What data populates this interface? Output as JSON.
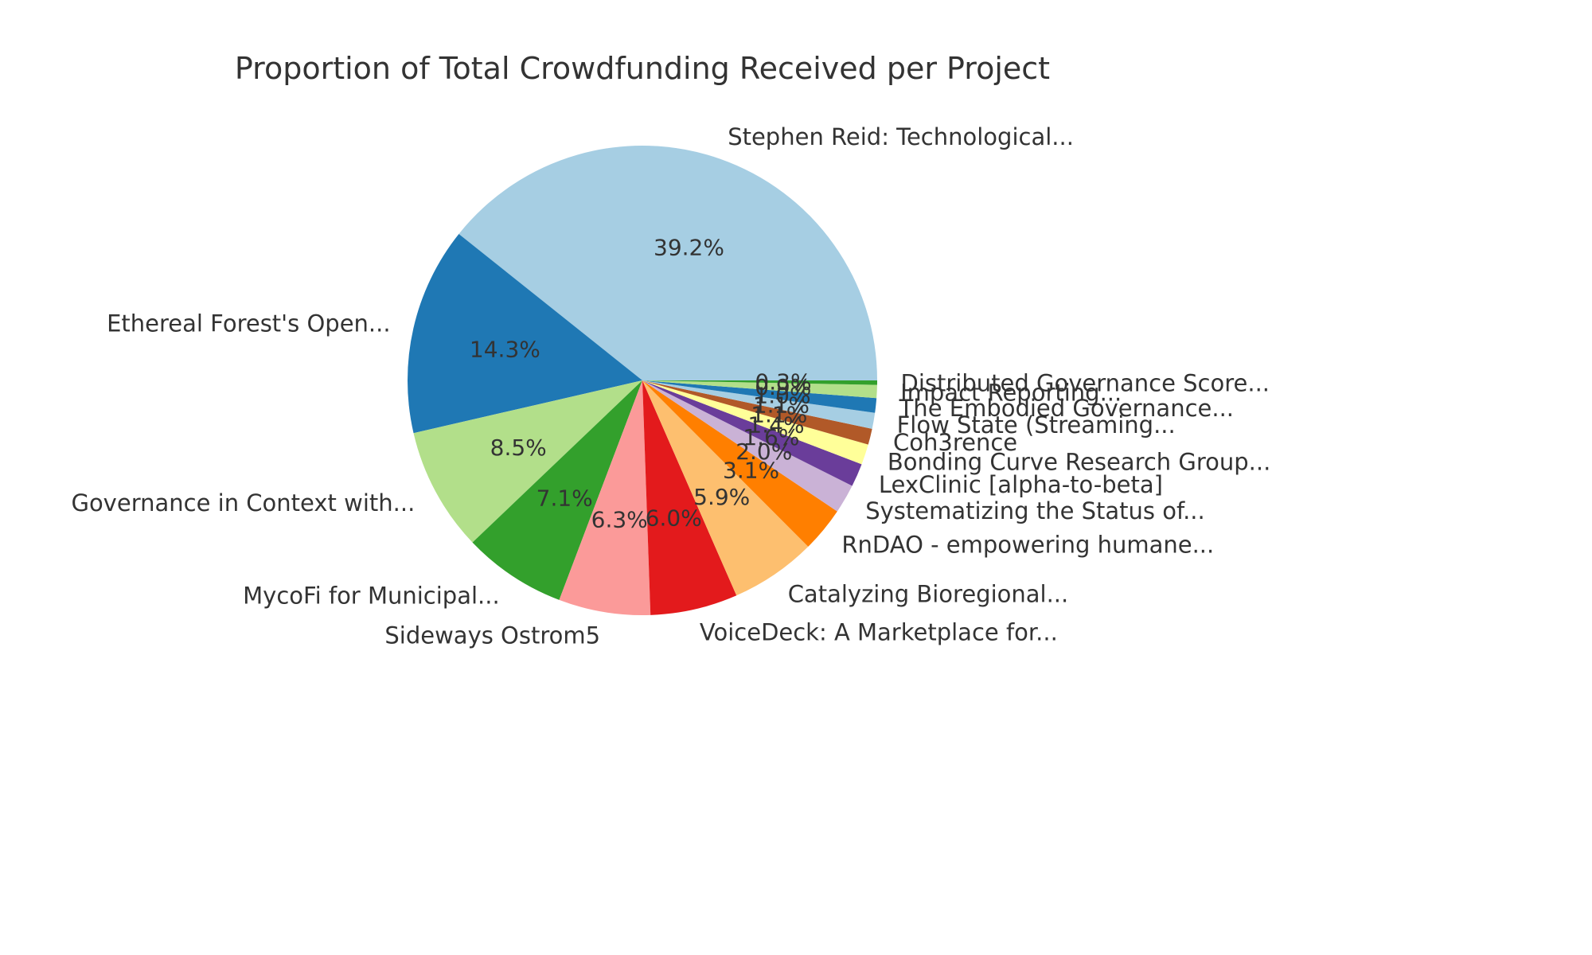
{
  "chart_data": {
    "type": "pie",
    "title": "Proportion of Total Crowdfunding Received per Project",
    "start_angle_deg": 0,
    "direction": "counterclockwise",
    "label_distance": 1.1,
    "pct_distance": 0.6,
    "legend": "none",
    "background_color": "#ffffff",
    "text_color": "#333333",
    "palette": "Paired",
    "slices": [
      {
        "label": "Stephen Reid: Technological...",
        "value": 39.2,
        "pct_label": "39.2%",
        "color": "#a6cee3"
      },
      {
        "label": "Ethereal Forest's Open...",
        "value": 14.3,
        "pct_label": "14.3%",
        "color": "#1f78b4"
      },
      {
        "label": "Governance in Context with...",
        "value": 8.5,
        "pct_label": "8.5%",
        "color": "#b2df8a"
      },
      {
        "label": "MycoFi for Municipal...",
        "value": 7.1,
        "pct_label": "7.1%",
        "color": "#33a02c"
      },
      {
        "label": "Sideways Ostrom5",
        "value": 6.3,
        "pct_label": "6.3%",
        "color": "#fb9a99"
      },
      {
        "label": "VoiceDeck: A Marketplace for...",
        "value": 6.0,
        "pct_label": "6.0%",
        "color": "#e31a1c"
      },
      {
        "label": "Catalyzing Bioregional...",
        "value": 5.9,
        "pct_label": "5.9%",
        "color": "#fdbf6f"
      },
      {
        "label": "RnDAO - empowering humane...",
        "value": 3.1,
        "pct_label": "3.1%",
        "color": "#ff7f00"
      },
      {
        "label": "Systematizing the Status of...",
        "value": 2.0,
        "pct_label": "2.0%",
        "color": "#cab2d6"
      },
      {
        "label": "LexClinic [alpha-to-beta]",
        "value": 1.6,
        "pct_label": "1.6%",
        "color": "#6a3d9a"
      },
      {
        "label": "Bonding Curve Research Group...",
        "value": 1.4,
        "pct_label": "1.4%",
        "color": "#ffff99"
      },
      {
        "label": "Coh3rence",
        "value": 1.1,
        "pct_label": "1.1%",
        "color": "#b15928"
      },
      {
        "label": "Flow State (Streaming...",
        "value": 1.1,
        "pct_label": "1.1%",
        "color": "#a6cee3"
      },
      {
        "label": "The Embodied Governance...",
        "value": 1.0,
        "pct_label": "1.0%",
        "color": "#1f78b4"
      },
      {
        "label": "Impact Reporting...",
        "value": 0.9,
        "pct_label": "0.9%",
        "color": "#b2df8a"
      },
      {
        "label": "Distributed Governance Score...",
        "value": 0.3,
        "pct_label": "0.3%",
        "color": "#33a02c"
      }
    ]
  }
}
